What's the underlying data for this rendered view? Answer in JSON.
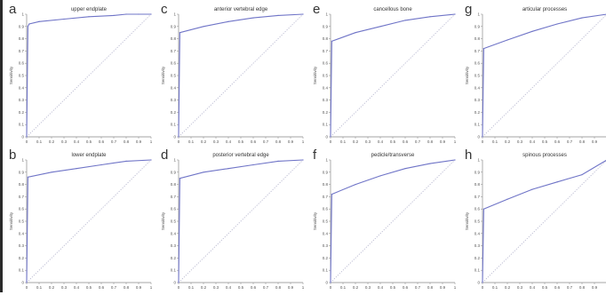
{
  "chart_data": [
    {
      "letter": "a",
      "title": "upper endplate",
      "type": "line",
      "xlabel": "1-Spe",
      "ylabel": "Sensitivity",
      "x": [
        0,
        0.01,
        0.02,
        0.1,
        0.3,
        0.5,
        0.7,
        0.8,
        0.9,
        1
      ],
      "y": [
        0,
        0.9,
        0.92,
        0.94,
        0.96,
        0.98,
        0.99,
        1,
        1,
        1
      ],
      "diag_style": "dotted"
    },
    {
      "letter": "b",
      "title": "lower endplate",
      "type": "line",
      "xlabel": "1-Spe",
      "ylabel": "Sensitivity",
      "x": [
        0,
        0.01,
        0.2,
        0.4,
        0.6,
        0.8,
        1
      ],
      "y": [
        0,
        0.86,
        0.9,
        0.93,
        0.96,
        0.99,
        1
      ],
      "diag_style": "dotted"
    },
    {
      "letter": "c",
      "title": "anterior vertebral edge",
      "type": "line",
      "xlabel": "1-Spe",
      "ylabel": "Sensitivity",
      "x": [
        0,
        0.01,
        0.2,
        0.4,
        0.6,
        0.8,
        1
      ],
      "y": [
        0,
        0.85,
        0.9,
        0.94,
        0.97,
        0.99,
        1
      ],
      "diag_style": "dotted"
    },
    {
      "letter": "d",
      "title": "posterior vertebral edge",
      "type": "line",
      "xlabel": "1-Spe",
      "ylabel": "Sensitivity",
      "x": [
        0,
        0.01,
        0.2,
        0.4,
        0.6,
        0.8,
        1
      ],
      "y": [
        0,
        0.85,
        0.9,
        0.93,
        0.96,
        0.99,
        1
      ],
      "diag_style": "dotted"
    },
    {
      "letter": "e",
      "title": "cancellous bone",
      "type": "line",
      "xlabel": "1-Spe",
      "ylabel": "Sensitivity",
      "x": [
        0,
        0.01,
        0.2,
        0.4,
        0.6,
        0.8,
        1
      ],
      "y": [
        0,
        0.78,
        0.85,
        0.9,
        0.95,
        0.98,
        1
      ],
      "diag_style": "dotted"
    },
    {
      "letter": "f",
      "title": "pedicle/transverse",
      "type": "line",
      "xlabel": "1-Spe",
      "ylabel": "Sensitivity",
      "x": [
        0,
        0.01,
        0.2,
        0.4,
        0.6,
        0.8,
        1
      ],
      "y": [
        0,
        0.72,
        0.8,
        0.87,
        0.93,
        0.97,
        1
      ],
      "diag_style": "dotted"
    },
    {
      "letter": "g",
      "title": "articular processes",
      "type": "line",
      "xlabel": "1-Spe",
      "ylabel": "Sensitivity",
      "x": [
        0,
        0.01,
        0.2,
        0.4,
        0.6,
        0.8,
        1
      ],
      "y": [
        0,
        0.72,
        0.79,
        0.86,
        0.92,
        0.97,
        1
      ],
      "diag_style": "dotted"
    },
    {
      "letter": "h",
      "title": "spinous processes",
      "type": "line",
      "xlabel": "1-Spe",
      "ylabel": "Sensitivity",
      "x": [
        0,
        0.01,
        0.2,
        0.4,
        0.6,
        0.8,
        1
      ],
      "y": [
        0,
        0.6,
        0.68,
        0.76,
        0.82,
        0.88,
        1
      ],
      "diag_style": "dotted"
    }
  ],
  "style": {
    "curve_color": "#6f74c7",
    "diag_color": "#b7b7cf",
    "axis_color": "#888888",
    "ticks_x": [
      "0",
      "0.1",
      "0.2",
      "0.3",
      "0.4",
      "0.5",
      "0.6",
      "0.7",
      "0.8",
      "0.9",
      "1"
    ],
    "ticks_y": [
      "0",
      "0.1",
      "0.2",
      "0.3",
      "0.4",
      "0.5",
      "0.6",
      "0.7",
      "0.8",
      "0.9",
      "1"
    ]
  }
}
